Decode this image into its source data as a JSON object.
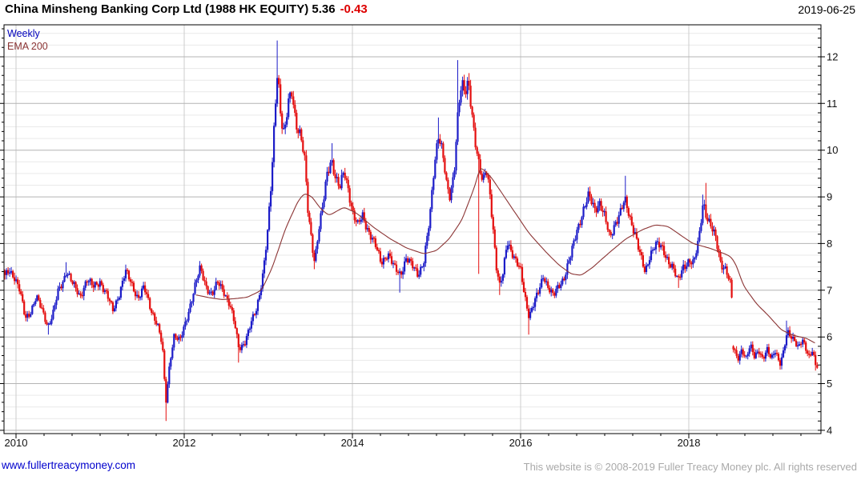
{
  "header": {
    "title": "China Minsheng Banking Corp Ltd (1988 HK EQUITY) 5.36",
    "change": "-0.43",
    "date": "2019-06-25"
  },
  "legend": {
    "timeframe": "Weekly",
    "overlay": "EMA 200"
  },
  "footer": {
    "website": "www.fullertreacymoney.com",
    "copyright": "This website is © 2008-2019 Fuller Treacy Money plc. All rights reserved"
  },
  "chart_data": {
    "type": "candlestick",
    "interval": "weekly",
    "instrument": "China Minsheng Banking Corp Ltd",
    "ticker": "1988 HK EQUITY",
    "last_price": 5.36,
    "change": -0.43,
    "as_of": "2019-06-25",
    "overlay": "EMA 200",
    "x_domain": [
      2009.857,
      2019.571
    ],
    "x_gridline_years": [
      2010,
      2012,
      2014,
      2016,
      2018
    ],
    "x_tick_labels": [
      "2010",
      "2012",
      "2014",
      "2016",
      "2018"
    ],
    "x_minor_tick_step_years": 0.33333,
    "ylim": [
      3.93,
      12.685
    ],
    "y_tick_values": [
      4,
      5,
      6,
      7,
      8,
      9,
      10,
      11,
      12
    ],
    "y_tick_labels": [
      "4",
      "5",
      "6",
      "7",
      "8",
      "9",
      "10",
      "11",
      "12"
    ],
    "y_minor_grid_step": 0.25,
    "y_minor_tick_step": 0.2,
    "grid": "on",
    "legend_position": "top-left",
    "colors": {
      "up": "#1C1CC8",
      "down": "#E40E0E",
      "ema": "#8B3434",
      "grid_major": "#b4b4b4",
      "grid_minor": "#e9e9e9",
      "grid_vertical": "#cccccc",
      "axis": "#000000",
      "tick_label": "#111111",
      "title": "#000000",
      "title_change": "#DD0000",
      "legend_timeframe": "#0000BB",
      "footer_link": "#0000CC",
      "footer_copyright": "#A9A9A9"
    },
    "weekly_close_anchors": [
      [
        2009.857,
        7.25
      ],
      [
        2009.92,
        7.45
      ],
      [
        2009.98,
        7.3
      ],
      [
        2010.04,
        7.0
      ],
      [
        2010.11,
        6.4
      ],
      [
        2010.17,
        6.55
      ],
      [
        2010.24,
        6.85
      ],
      [
        2010.3,
        6.6
      ],
      [
        2010.38,
        6.25
      ],
      [
        2010.44,
        6.5
      ],
      [
        2010.5,
        6.95
      ],
      [
        2010.56,
        7.2
      ],
      [
        2010.6,
        7.45
      ],
      [
        2010.68,
        7.1
      ],
      [
        2010.76,
        6.85
      ],
      [
        2010.84,
        7.25
      ],
      [
        2010.92,
        7.05
      ],
      [
        2011.0,
        7.2
      ],
      [
        2011.08,
        6.9
      ],
      [
        2011.15,
        6.55
      ],
      [
        2011.22,
        6.9
      ],
      [
        2011.3,
        7.4
      ],
      [
        2011.38,
        7.1
      ],
      [
        2011.45,
        6.85
      ],
      [
        2011.52,
        7.05
      ],
      [
        2011.6,
        6.6
      ],
      [
        2011.68,
        6.3
      ],
      [
        2011.74,
        5.8
      ],
      [
        2011.78,
        4.55
      ],
      [
        2011.83,
        5.5
      ],
      [
        2011.88,
        6.05
      ],
      [
        2011.95,
        5.9
      ],
      [
        2012.0,
        6.2
      ],
      [
        2012.07,
        6.7
      ],
      [
        2012.13,
        7.1
      ],
      [
        2012.19,
        7.45
      ],
      [
        2012.26,
        7.1
      ],
      [
        2012.33,
        6.9
      ],
      [
        2012.4,
        7.15
      ],
      [
        2012.47,
        7.0
      ],
      [
        2012.54,
        6.7
      ],
      [
        2012.6,
        6.25
      ],
      [
        2012.65,
        5.75
      ],
      [
        2012.72,
        5.9
      ],
      [
        2012.79,
        6.25
      ],
      [
        2012.86,
        6.6
      ],
      [
        2012.93,
        7.3
      ],
      [
        2012.99,
        8.2
      ],
      [
        2013.04,
        9.4
      ],
      [
        2013.08,
        10.9
      ],
      [
        2013.11,
        11.8
      ],
      [
        2013.15,
        10.7
      ],
      [
        2013.19,
        10.3
      ],
      [
        2013.24,
        11.0
      ],
      [
        2013.28,
        11.25
      ],
      [
        2013.33,
        10.6
      ],
      [
        2013.38,
        10.35
      ],
      [
        2013.43,
        9.8
      ],
      [
        2013.47,
        8.7
      ],
      [
        2013.52,
        8.0
      ],
      [
        2013.55,
        7.65
      ],
      [
        2013.6,
        8.3
      ],
      [
        2013.65,
        8.8
      ],
      [
        2013.7,
        9.5
      ],
      [
        2013.75,
        9.85
      ],
      [
        2013.8,
        9.4
      ],
      [
        2013.85,
        9.15
      ],
      [
        2013.9,
        9.55
      ],
      [
        2013.95,
        9.2
      ],
      [
        2014.0,
        8.7
      ],
      [
        2014.06,
        8.35
      ],
      [
        2014.12,
        8.6
      ],
      [
        2014.2,
        8.25
      ],
      [
        2014.27,
        7.95
      ],
      [
        2014.34,
        7.6
      ],
      [
        2014.42,
        7.8
      ],
      [
        2014.5,
        7.45
      ],
      [
        2014.57,
        7.35
      ],
      [
        2014.64,
        7.7
      ],
      [
        2014.71,
        7.5
      ],
      [
        2014.78,
        7.35
      ],
      [
        2014.85,
        7.65
      ],
      [
        2014.92,
        8.5
      ],
      [
        2014.97,
        9.6
      ],
      [
        2015.02,
        10.4
      ],
      [
        2015.07,
        10.0
      ],
      [
        2015.12,
        9.2
      ],
      [
        2015.16,
        8.95
      ],
      [
        2015.21,
        9.6
      ],
      [
        2015.26,
        11.0
      ],
      [
        2015.3,
        11.4
      ],
      [
        2015.34,
        11.15
      ],
      [
        2015.38,
        11.45
      ],
      [
        2015.43,
        10.7
      ],
      [
        2015.47,
        10.1
      ],
      [
        2015.51,
        9.6
      ],
      [
        2015.55,
        9.25
      ],
      [
        2015.59,
        9.6
      ],
      [
        2015.63,
        9.2
      ],
      [
        2015.67,
        8.4
      ],
      [
        2015.71,
        7.5
      ],
      [
        2015.75,
        7.05
      ],
      [
        2015.79,
        7.35
      ],
      [
        2015.84,
        8.1
      ],
      [
        2015.89,
        7.85
      ],
      [
        2015.94,
        7.6
      ],
      [
        2016.0,
        7.4
      ],
      [
        2016.05,
        6.9
      ],
      [
        2016.1,
        6.45
      ],
      [
        2016.16,
        6.7
      ],
      [
        2016.22,
        7.0
      ],
      [
        2016.27,
        7.35
      ],
      [
        2016.33,
        7.05
      ],
      [
        2016.39,
        6.85
      ],
      [
        2016.45,
        7.1
      ],
      [
        2016.52,
        7.3
      ],
      [
        2016.6,
        7.75
      ],
      [
        2016.67,
        8.3
      ],
      [
        2016.74,
        8.7
      ],
      [
        2016.81,
        9.0
      ],
      [
        2016.88,
        8.75
      ],
      [
        2016.94,
        8.9
      ],
      [
        2017.0,
        8.55
      ],
      [
        2017.06,
        8.1
      ],
      [
        2017.12,
        8.45
      ],
      [
        2017.18,
        8.65
      ],
      [
        2017.24,
        8.9
      ],
      [
        2017.3,
        8.55
      ],
      [
        2017.36,
        8.25
      ],
      [
        2017.42,
        7.75
      ],
      [
        2017.48,
        7.35
      ],
      [
        2017.54,
        7.8
      ],
      [
        2017.6,
        8.0
      ],
      [
        2017.67,
        7.9
      ],
      [
        2017.74,
        7.7
      ],
      [
        2017.81,
        7.5
      ],
      [
        2017.87,
        7.15
      ],
      [
        2017.93,
        7.5
      ],
      [
        2018.0,
        7.65
      ],
      [
        2018.06,
        7.55
      ],
      [
        2018.12,
        8.1
      ],
      [
        2018.17,
        8.95
      ],
      [
        2018.21,
        8.6
      ],
      [
        2018.26,
        8.35
      ],
      [
        2018.32,
        8.1
      ],
      [
        2018.38,
        7.6
      ],
      [
        2018.44,
        7.45
      ],
      [
        2018.47,
        7.25
      ],
      [
        2018.508,
        7.0
      ],
      [
        2018.522,
        5.78
      ],
      [
        2018.58,
        5.55
      ],
      [
        2018.63,
        5.75
      ],
      [
        2018.68,
        5.5
      ],
      [
        2018.73,
        5.8
      ],
      [
        2018.78,
        5.6
      ],
      [
        2018.83,
        5.75
      ],
      [
        2018.88,
        5.5
      ],
      [
        2018.93,
        5.7
      ],
      [
        2018.98,
        5.55
      ],
      [
        2019.03,
        5.75
      ],
      [
        2019.08,
        5.4
      ],
      [
        2019.12,
        5.6
      ],
      [
        2019.17,
        6.1
      ],
      [
        2019.21,
        6.05
      ],
      [
        2019.26,
        5.95
      ],
      [
        2019.3,
        5.75
      ],
      [
        2019.35,
        5.9
      ],
      [
        2019.39,
        5.75
      ],
      [
        2019.43,
        5.6
      ],
      [
        2019.47,
        5.75
      ],
      [
        2019.51,
        5.36
      ]
    ],
    "wick_overrides": [
      {
        "t": 2010.38,
        "low": 6.05
      },
      {
        "t": 2010.6,
        "high": 7.6
      },
      {
        "t": 2011.3,
        "high": 7.55
      },
      {
        "t": 2011.78,
        "low": 4.2
      },
      {
        "t": 2012.19,
        "high": 7.6
      },
      {
        "t": 2012.65,
        "low": 5.45
      },
      {
        "t": 2013.11,
        "high": 12.35
      },
      {
        "t": 2013.55,
        "low": 7.45
      },
      {
        "t": 2013.75,
        "high": 10.15
      },
      {
        "t": 2014.57,
        "low": 6.95
      },
      {
        "t": 2015.02,
        "high": 10.7
      },
      {
        "t": 2015.26,
        "high": 11.93
      },
      {
        "t": 2015.38,
        "high": 11.65
      },
      {
        "t": 2015.51,
        "low": 7.35
      },
      {
        "t": 2015.75,
        "low": 6.9
      },
      {
        "t": 2016.1,
        "low": 6.05
      },
      {
        "t": 2016.81,
        "high": 9.2
      },
      {
        "t": 2017.24,
        "high": 9.45
      },
      {
        "t": 2017.87,
        "low": 7.05
      },
      {
        "t": 2018.17,
        "high": 9.05
      },
      {
        "t": 2018.21,
        "high": 9.3
      },
      {
        "t": 2019.08,
        "low": 5.3
      },
      {
        "t": 2019.17,
        "high": 6.35
      },
      {
        "t": 2019.51,
        "low": 5.28
      }
    ],
    "gap_weeks": [
      2018.527
    ],
    "ema_anchors": [
      [
        2012.14,
        6.9
      ],
      [
        2012.3,
        6.84
      ],
      [
        2012.45,
        6.8
      ],
      [
        2012.6,
        6.82
      ],
      [
        2012.75,
        6.85
      ],
      [
        2012.92,
        7.0
      ],
      [
        2013.05,
        7.5
      ],
      [
        2013.2,
        8.3
      ],
      [
        2013.35,
        8.9
      ],
      [
        2013.43,
        9.08
      ],
      [
        2013.52,
        9.0
      ],
      [
        2013.62,
        8.75
      ],
      [
        2013.72,
        8.6
      ],
      [
        2013.9,
        8.78
      ],
      [
        2014.05,
        8.65
      ],
      [
        2014.25,
        8.35
      ],
      [
        2014.45,
        8.1
      ],
      [
        2014.65,
        7.9
      ],
      [
        2014.85,
        7.78
      ],
      [
        2015.0,
        7.85
      ],
      [
        2015.15,
        8.1
      ],
      [
        2015.3,
        8.5
      ],
      [
        2015.45,
        9.2
      ],
      [
        2015.52,
        9.65
      ],
      [
        2015.65,
        9.42
      ],
      [
        2015.8,
        9.02
      ],
      [
        2015.95,
        8.62
      ],
      [
        2016.1,
        8.22
      ],
      [
        2016.3,
        7.82
      ],
      [
        2016.45,
        7.55
      ],
      [
        2016.6,
        7.35
      ],
      [
        2016.72,
        7.32
      ],
      [
        2016.85,
        7.48
      ],
      [
        2017.05,
        7.8
      ],
      [
        2017.25,
        8.1
      ],
      [
        2017.45,
        8.3
      ],
      [
        2017.6,
        8.4
      ],
      [
        2017.75,
        8.37
      ],
      [
        2017.95,
        8.12
      ],
      [
        2018.05,
        8.0
      ],
      [
        2018.25,
        7.9
      ],
      [
        2018.4,
        7.8
      ],
      [
        2018.5,
        7.72
      ],
      [
        2018.56,
        7.55
      ],
      [
        2018.65,
        7.1
      ],
      [
        2018.8,
        6.72
      ],
      [
        2018.95,
        6.45
      ],
      [
        2019.1,
        6.15
      ],
      [
        2019.25,
        6.03
      ],
      [
        2019.4,
        5.97
      ],
      [
        2019.51,
        5.86
      ]
    ]
  }
}
